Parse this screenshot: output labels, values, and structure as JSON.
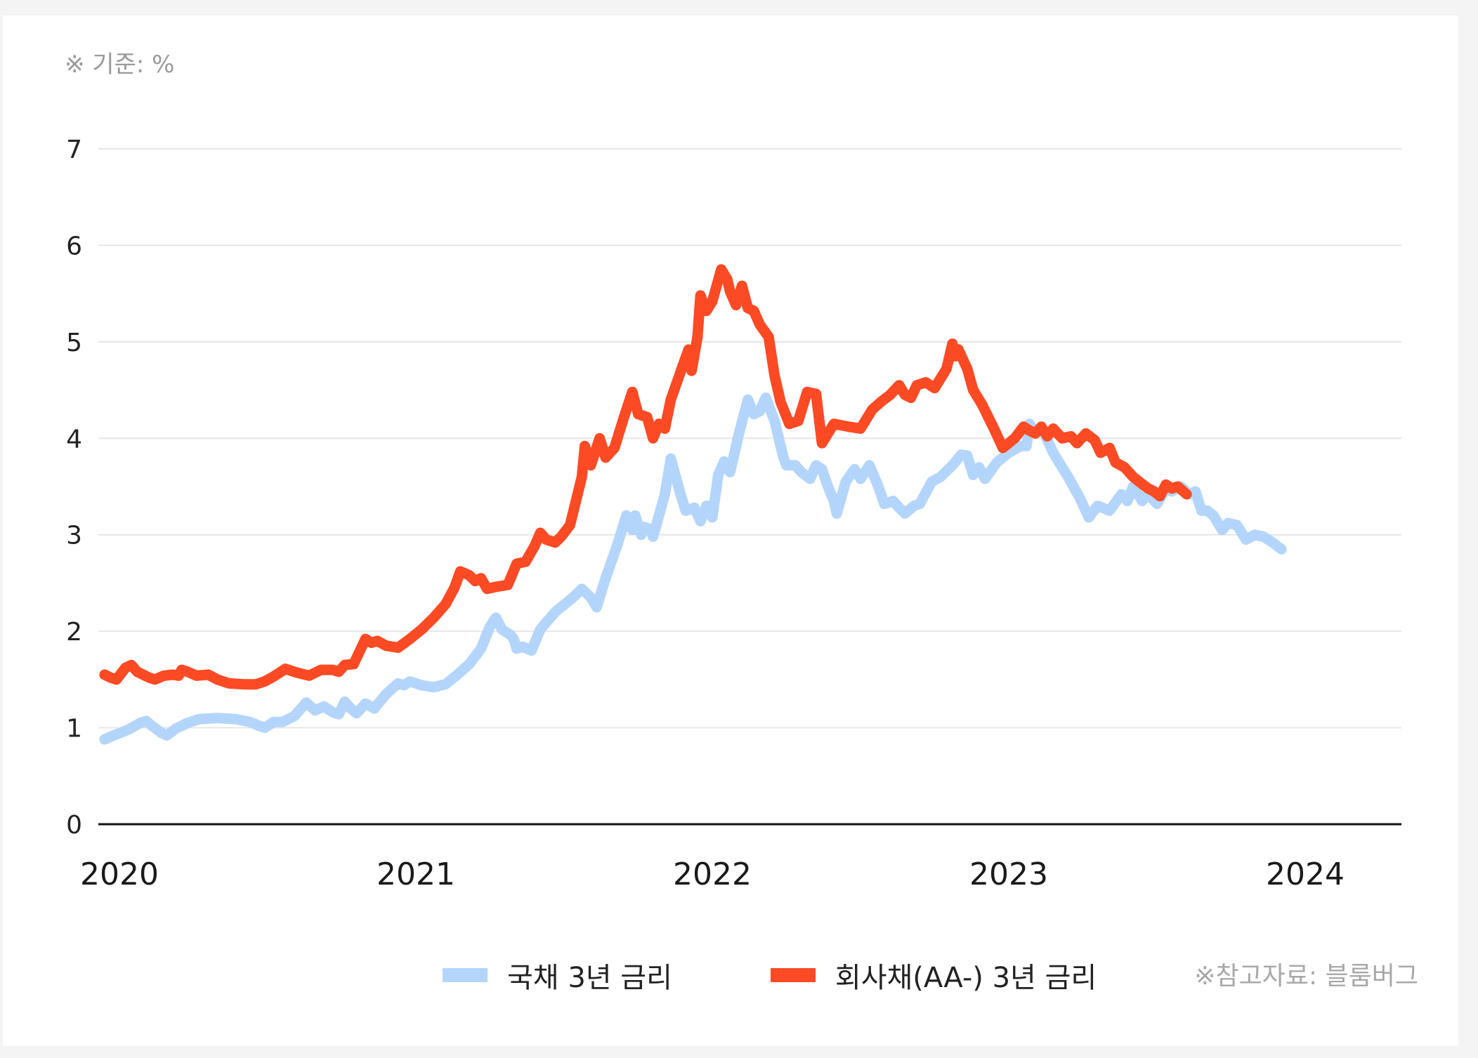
{
  "unit_note": "※ 기준: %",
  "source_note": "※참고자료: 블룸버그",
  "colors": {
    "gov": "#b4d5fb",
    "corp": "#fc4a24",
    "axis": "#111111",
    "grid": "#e6e6e6"
  },
  "chart_data": {
    "type": "line",
    "title": "",
    "xlabel": "",
    "ylabel": "",
    "ylim": [
      0,
      7
    ],
    "xlim": [
      2020,
      2024.33
    ],
    "yticks": [
      "0",
      "1",
      "2",
      "3",
      "4",
      "5",
      "6",
      "7"
    ],
    "xticks": [
      "2020",
      "2021",
      "2022",
      "2023",
      "2024"
    ],
    "grid": true,
    "legend_position": "bottom",
    "series": [
      {
        "name": "국채 3년 금리",
        "points": [
          [
            2019.95,
            0.88
          ],
          [
            2019.98,
            0.92
          ],
          [
            2020.03,
            0.98
          ],
          [
            2020.07,
            1.05
          ],
          [
            2020.09,
            1.07
          ],
          [
            2020.11,
            1.02
          ],
          [
            2020.14,
            0.95
          ],
          [
            2020.16,
            0.92
          ],
          [
            2020.19,
            0.99
          ],
          [
            2020.23,
            1.05
          ],
          [
            2020.27,
            1.09
          ],
          [
            2020.33,
            1.1
          ],
          [
            2020.39,
            1.09
          ],
          [
            2020.44,
            1.06
          ],
          [
            2020.47,
            1.02
          ],
          [
            2020.49,
            1.0
          ],
          [
            2020.52,
            1.06
          ],
          [
            2020.55,
            1.06
          ],
          [
            2020.59,
            1.12
          ],
          [
            2020.63,
            1.26
          ],
          [
            2020.66,
            1.18
          ],
          [
            2020.69,
            1.22
          ],
          [
            2020.72,
            1.16
          ],
          [
            2020.74,
            1.14
          ],
          [
            2020.76,
            1.27
          ],
          [
            2020.78,
            1.2
          ],
          [
            2020.8,
            1.15
          ],
          [
            2020.83,
            1.25
          ],
          [
            2020.86,
            1.2
          ],
          [
            2020.9,
            1.35
          ],
          [
            2020.94,
            1.46
          ],
          [
            2020.96,
            1.44
          ],
          [
            2020.98,
            1.48
          ],
          [
            2021.02,
            1.44
          ],
          [
            2021.06,
            1.42
          ],
          [
            2021.1,
            1.45
          ],
          [
            2021.14,
            1.55
          ],
          [
            2021.18,
            1.66
          ],
          [
            2021.22,
            1.82
          ],
          [
            2021.25,
            2.05
          ],
          [
            2021.27,
            2.14
          ],
          [
            2021.29,
            2.02
          ],
          [
            2021.32,
            1.96
          ],
          [
            2021.33,
            1.92
          ],
          [
            2021.34,
            1.82
          ],
          [
            2021.36,
            1.84
          ],
          [
            2021.39,
            1.8
          ],
          [
            2021.42,
            2.02
          ],
          [
            2021.47,
            2.2
          ],
          [
            2021.53,
            2.35
          ],
          [
            2021.56,
            2.44
          ],
          [
            2021.59,
            2.35
          ],
          [
            2021.61,
            2.25
          ],
          [
            2021.64,
            2.55
          ],
          [
            2021.68,
            2.9
          ],
          [
            2021.71,
            3.2
          ],
          [
            2021.73,
            3.05
          ],
          [
            2021.74,
            3.2
          ],
          [
            2021.76,
            3.0
          ],
          [
            2021.77,
            3.08
          ],
          [
            2021.79,
            3.06
          ],
          [
            2021.8,
            2.98
          ],
          [
            2021.84,
            3.42
          ],
          [
            2021.86,
            3.79
          ],
          [
            2021.89,
            3.45
          ],
          [
            2021.91,
            3.25
          ],
          [
            2021.94,
            3.28
          ],
          [
            2021.96,
            3.14
          ],
          [
            2021.98,
            3.3
          ],
          [
            2022.0,
            3.18
          ],
          [
            2022.02,
            3.62
          ],
          [
            2022.04,
            3.76
          ],
          [
            2022.06,
            3.65
          ],
          [
            2022.09,
            4.05
          ],
          [
            2022.12,
            4.4
          ],
          [
            2022.14,
            4.25
          ],
          [
            2022.16,
            4.28
          ],
          [
            2022.18,
            4.42
          ],
          [
            2022.21,
            4.18
          ],
          [
            2022.24,
            3.8
          ],
          [
            2022.25,
            3.72
          ],
          [
            2022.28,
            3.72
          ],
          [
            2022.3,
            3.65
          ],
          [
            2022.33,
            3.58
          ],
          [
            2022.35,
            3.72
          ],
          [
            2022.37,
            3.68
          ],
          [
            2022.39,
            3.5
          ],
          [
            2022.41,
            3.35
          ],
          [
            2022.42,
            3.22
          ],
          [
            2022.45,
            3.55
          ],
          [
            2022.48,
            3.68
          ],
          [
            2022.5,
            3.58
          ],
          [
            2022.53,
            3.72
          ],
          [
            2022.56,
            3.5
          ],
          [
            2022.58,
            3.32
          ],
          [
            2022.61,
            3.35
          ],
          [
            2022.63,
            3.28
          ],
          [
            2022.65,
            3.22
          ],
          [
            2022.68,
            3.3
          ],
          [
            2022.7,
            3.32
          ],
          [
            2022.74,
            3.55
          ],
          [
            2022.77,
            3.6
          ],
          [
            2022.81,
            3.72
          ],
          [
            2022.84,
            3.83
          ],
          [
            2022.86,
            3.82
          ],
          [
            2022.88,
            3.62
          ],
          [
            2022.9,
            3.7
          ],
          [
            2022.92,
            3.58
          ],
          [
            2022.96,
            3.75
          ],
          [
            2023.0,
            3.85
          ],
          [
            2023.04,
            3.92
          ],
          [
            2023.06,
            3.92
          ],
          [
            2023.07,
            4.15
          ],
          [
            2023.09,
            4.05
          ],
          [
            2023.11,
            4.1
          ],
          [
            2023.12,
            4.05
          ],
          [
            2023.15,
            3.85
          ],
          [
            2023.2,
            3.6
          ],
          [
            2023.24,
            3.38
          ],
          [
            2023.27,
            3.18
          ],
          [
            2023.3,
            3.3
          ],
          [
            2023.34,
            3.25
          ],
          [
            2023.38,
            3.42
          ],
          [
            2023.4,
            3.35
          ],
          [
            2023.42,
            3.5
          ],
          [
            2023.45,
            3.35
          ],
          [
            2023.47,
            3.42
          ],
          [
            2023.5,
            3.32
          ],
          [
            2023.53,
            3.48
          ],
          [
            2023.55,
            3.45
          ],
          [
            2023.58,
            3.5
          ],
          [
            2023.61,
            3.42
          ],
          [
            2023.63,
            3.45
          ],
          [
            2023.65,
            3.25
          ],
          [
            2023.67,
            3.25
          ],
          [
            2023.69,
            3.2
          ],
          [
            2023.72,
            3.05
          ],
          [
            2023.74,
            3.12
          ],
          [
            2023.77,
            3.1
          ],
          [
            2023.8,
            2.95
          ],
          [
            2023.83,
            3.0
          ],
          [
            2023.86,
            2.98
          ],
          [
            2023.89,
            2.92
          ],
          [
            2023.92,
            2.85
          ]
        ]
      },
      {
        "name": "회사채(AA-) 3년 금리",
        "points": [
          [
            2019.95,
            1.55
          ],
          [
            2019.97,
            1.52
          ],
          [
            2019.99,
            1.5
          ],
          [
            2020.02,
            1.62
          ],
          [
            2020.04,
            1.65
          ],
          [
            2020.06,
            1.58
          ],
          [
            2020.1,
            1.52
          ],
          [
            2020.12,
            1.5
          ],
          [
            2020.15,
            1.54
          ],
          [
            2020.18,
            1.55
          ],
          [
            2020.2,
            1.54
          ],
          [
            2020.21,
            1.6
          ],
          [
            2020.23,
            1.58
          ],
          [
            2020.26,
            1.54
          ],
          [
            2020.3,
            1.55
          ],
          [
            2020.33,
            1.5
          ],
          [
            2020.37,
            1.46
          ],
          [
            2020.42,
            1.45
          ],
          [
            2020.46,
            1.45
          ],
          [
            2020.49,
            1.48
          ],
          [
            2020.52,
            1.53
          ],
          [
            2020.56,
            1.61
          ],
          [
            2020.6,
            1.57
          ],
          [
            2020.64,
            1.54
          ],
          [
            2020.68,
            1.6
          ],
          [
            2020.72,
            1.6
          ],
          [
            2020.74,
            1.58
          ],
          [
            2020.76,
            1.65
          ],
          [
            2020.79,
            1.66
          ],
          [
            2020.83,
            1.92
          ],
          [
            2020.85,
            1.88
          ],
          [
            2020.87,
            1.9
          ],
          [
            2020.9,
            1.85
          ],
          [
            2020.94,
            1.83
          ],
          [
            2020.98,
            1.92
          ],
          [
            2021.02,
            2.02
          ],
          [
            2021.06,
            2.14
          ],
          [
            2021.1,
            2.28
          ],
          [
            2021.13,
            2.45
          ],
          [
            2021.15,
            2.62
          ],
          [
            2021.18,
            2.58
          ],
          [
            2021.2,
            2.52
          ],
          [
            2021.22,
            2.55
          ],
          [
            2021.24,
            2.44
          ],
          [
            2021.27,
            2.46
          ],
          [
            2021.31,
            2.48
          ],
          [
            2021.34,
            2.7
          ],
          [
            2021.37,
            2.72
          ],
          [
            2021.4,
            2.88
          ],
          [
            2021.42,
            3.02
          ],
          [
            2021.44,
            2.95
          ],
          [
            2021.47,
            2.92
          ],
          [
            2021.49,
            2.98
          ],
          [
            2021.52,
            3.1
          ],
          [
            2021.56,
            3.6
          ],
          [
            2021.57,
            3.92
          ],
          [
            2021.59,
            3.72
          ],
          [
            2021.62,
            4.0
          ],
          [
            2021.64,
            3.8
          ],
          [
            2021.67,
            3.9
          ],
          [
            2021.7,
            4.2
          ],
          [
            2021.73,
            4.48
          ],
          [
            2021.75,
            4.25
          ],
          [
            2021.78,
            4.22
          ],
          [
            2021.8,
            4.0
          ],
          [
            2021.82,
            4.15
          ],
          [
            2021.84,
            4.1
          ],
          [
            2021.86,
            4.4
          ],
          [
            2021.9,
            4.75
          ],
          [
            2021.92,
            4.92
          ],
          [
            2021.93,
            4.7
          ],
          [
            2021.95,
            5.05
          ],
          [
            2021.96,
            5.48
          ],
          [
            2021.98,
            5.32
          ],
          [
            2022.0,
            5.42
          ],
          [
            2022.03,
            5.75
          ],
          [
            2022.05,
            5.65
          ],
          [
            2022.06,
            5.52
          ],
          [
            2022.08,
            5.38
          ],
          [
            2022.1,
            5.58
          ],
          [
            2022.12,
            5.35
          ],
          [
            2022.14,
            5.32
          ],
          [
            2022.16,
            5.18
          ],
          [
            2022.19,
            5.05
          ],
          [
            2022.21,
            4.65
          ],
          [
            2022.23,
            4.38
          ],
          [
            2022.26,
            4.15
          ],
          [
            2022.29,
            4.18
          ],
          [
            2022.32,
            4.48
          ],
          [
            2022.35,
            4.46
          ],
          [
            2022.37,
            3.95
          ],
          [
            2022.41,
            4.15
          ],
          [
            2022.46,
            4.12
          ],
          [
            2022.5,
            4.1
          ],
          [
            2022.54,
            4.3
          ],
          [
            2022.57,
            4.38
          ],
          [
            2022.6,
            4.45
          ],
          [
            2022.63,
            4.55
          ],
          [
            2022.65,
            4.45
          ],
          [
            2022.67,
            4.42
          ],
          [
            2022.69,
            4.55
          ],
          [
            2022.72,
            4.58
          ],
          [
            2022.75,
            4.52
          ],
          [
            2022.79,
            4.72
          ],
          [
            2022.81,
            4.98
          ],
          [
            2022.82,
            4.85
          ],
          [
            2022.83,
            4.92
          ],
          [
            2022.86,
            4.72
          ],
          [
            2022.88,
            4.5
          ],
          [
            2022.91,
            4.35
          ],
          [
            2022.95,
            4.1
          ],
          [
            2022.98,
            3.9
          ],
          [
            2023.02,
            4.0
          ],
          [
            2023.05,
            4.12
          ],
          [
            2023.07,
            4.08
          ],
          [
            2023.09,
            4.05
          ],
          [
            2023.11,
            4.12
          ],
          [
            2023.13,
            4.02
          ],
          [
            2023.15,
            4.1
          ],
          [
            2023.18,
            4.0
          ],
          [
            2023.21,
            4.02
          ],
          [
            2023.23,
            3.95
          ],
          [
            2023.26,
            4.05
          ],
          [
            2023.29,
            3.98
          ],
          [
            2023.31,
            3.85
          ],
          [
            2023.34,
            3.9
          ],
          [
            2023.36,
            3.75
          ],
          [
            2023.39,
            3.7
          ],
          [
            2023.42,
            3.6
          ],
          [
            2023.44,
            3.55
          ],
          [
            2023.47,
            3.48
          ],
          [
            2023.49,
            3.45
          ],
          [
            2023.51,
            3.4
          ],
          [
            2023.53,
            3.52
          ],
          [
            2023.55,
            3.48
          ],
          [
            2023.57,
            3.5
          ],
          [
            2023.6,
            3.42
          ]
        ]
      }
    ]
  }
}
